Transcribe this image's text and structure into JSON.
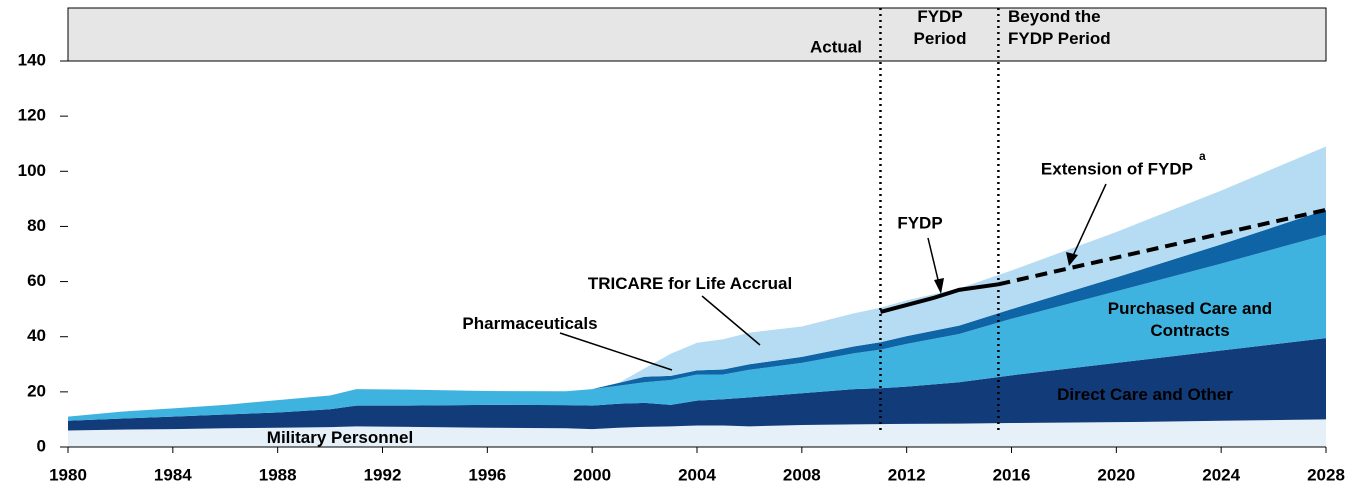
{
  "chart_data": {
    "type": "stacked_area",
    "x": [
      1980,
      1982,
      1984,
      1986,
      1988,
      1990,
      1991,
      1993,
      1996,
      1999,
      2000,
      2001,
      2002,
      2003,
      2004,
      2005,
      2006,
      2008,
      2010,
      2011,
      2012,
      2014,
      2016,
      2020,
      2024,
      2028
    ],
    "series": [
      {
        "name": "Military Personnel",
        "color": "#e6f0f9",
        "values": [
          6,
          6.3,
          6.5,
          6.8,
          7,
          7.2,
          7.5,
          7.3,
          7,
          6.8,
          6.5,
          7,
          7.3,
          7.5,
          7.8,
          7.8,
          7.5,
          8,
          8.2,
          8.3,
          8.4,
          8.5,
          8.7,
          9,
          9.5,
          10
        ]
      },
      {
        "name": "Direct Care and Other",
        "color": "#123b7a",
        "values": [
          3.5,
          4,
          4.5,
          5,
          5.5,
          6.5,
          7.5,
          7.7,
          8.3,
          8.4,
          8.5,
          8.7,
          8.7,
          7.8,
          9,
          9.5,
          10.5,
          11.5,
          12.8,
          13,
          13.5,
          15,
          17.3,
          21.5,
          25.5,
          29.5
        ]
      },
      {
        "name": "Purchased Care and Contracts",
        "color": "#3fb3df",
        "values": [
          1.5,
          2.5,
          3,
          3.5,
          4.5,
          5,
          6,
          5.8,
          5,
          5,
          6,
          6.5,
          7.5,
          9,
          9.5,
          9,
          10,
          11,
          13,
          14,
          15.5,
          17.5,
          20.5,
          26,
          31.5,
          37.5
        ]
      },
      {
        "name": "Pharmaceuticals",
        "color": "#0f64a6",
        "values": [
          0,
          0,
          0,
          0,
          0,
          0,
          0,
          0,
          0,
          0,
          0,
          1,
          2,
          1.5,
          1.5,
          1.8,
          2,
          2.2,
          2.5,
          2.7,
          2.8,
          3,
          3.5,
          5,
          7,
          9
        ]
      },
      {
        "name": "TRICARE for Life Accrual",
        "color": "#b5dcf2",
        "values": [
          0,
          0,
          0,
          0,
          0,
          0,
          0,
          0,
          0,
          0,
          0,
          0,
          3,
          8,
          10,
          11,
          11.5,
          11,
          12,
          12.5,
          13,
          13.5,
          14,
          16.5,
          19.5,
          23
        ]
      }
    ],
    "lines": [
      {
        "name": "FYDP",
        "x": [
          2011,
          2013,
          2014,
          2015.5
        ],
        "values": [
          49,
          54,
          57,
          59
        ],
        "style": "solid"
      },
      {
        "name": "Extension of FYDP",
        "superscript": "a",
        "x": [
          2015.5,
          2028
        ],
        "values": [
          59,
          86
        ],
        "style": "dashed"
      }
    ],
    "periods": [
      "Actual",
      "FYDP Period",
      "Beyond the FYDP Period"
    ],
    "period_lines": [
      2011,
      2015.5
    ],
    "xlim": [
      1980,
      2028
    ],
    "xticks": [
      1980,
      1984,
      1988,
      1992,
      1996,
      2000,
      2004,
      2008,
      2012,
      2016,
      2020,
      2024,
      2028
    ],
    "ylim": [
      0,
      140
    ],
    "yticks": [
      0,
      20,
      40,
      60,
      80,
      100,
      120,
      140
    ]
  }
}
